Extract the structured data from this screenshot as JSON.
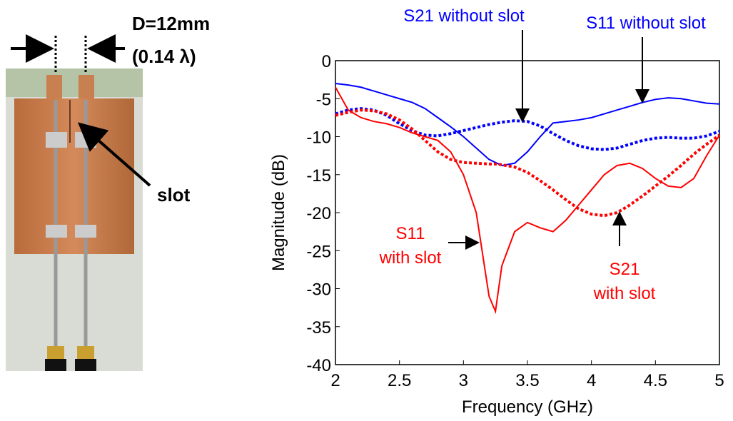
{
  "photo_labels": {
    "distance": "D=12mm",
    "wavelength": "(0.14 λ)",
    "slot": "slot"
  },
  "chart_data": {
    "type": "line",
    "x_label": "Frequency (GHz)",
    "y_label": "Magnitude (dB)",
    "x": [
      2.0,
      2.1,
      2.2,
      2.3,
      2.4,
      2.5,
      2.6,
      2.7,
      2.8,
      2.9,
      3.0,
      3.1,
      3.2,
      3.25,
      3.3,
      3.4,
      3.5,
      3.6,
      3.7,
      3.8,
      3.9,
      4.0,
      4.1,
      4.2,
      4.3,
      4.4,
      4.5,
      4.6,
      4.7,
      4.8,
      4.9,
      5.0
    ],
    "series": [
      {
        "name": "S11 without slot",
        "color": "#0000ff",
        "dash": "solid",
        "values": [
          -3,
          -3.2,
          -3.5,
          -4,
          -4.5,
          -5,
          -5.5,
          -6.3,
          -7.5,
          -8.7,
          -10,
          -11.5,
          -13,
          -13.4,
          -13.8,
          -13.5,
          -12,
          -10,
          -8.2,
          -8,
          -7.8,
          -7.5,
          -7,
          -6.5,
          -6,
          -5.5,
          -5.1,
          -4.9,
          -5,
          -5.3,
          -5.6,
          -5.7
        ]
      },
      {
        "name": "S21 without slot",
        "color": "#0000ff",
        "dash": "dotted",
        "values": [
          -7,
          -6.5,
          -6.3,
          -6.5,
          -7.2,
          -8.3,
          -9.2,
          -9.8,
          -9.9,
          -9.6,
          -9.2,
          -8.8,
          -8.4,
          -8.25,
          -8.1,
          -7.9,
          -8,
          -8.6,
          -9.6,
          -10.5,
          -11.2,
          -11.6,
          -11.7,
          -11.5,
          -11,
          -10.5,
          -10.2,
          -10.1,
          -10.2,
          -10.2,
          -9.9,
          -9.3
        ]
      },
      {
        "name": "S11 with slot",
        "color": "#ff0000",
        "dash": "solid",
        "values": [
          -3.5,
          -6.5,
          -7.5,
          -8,
          -8.3,
          -8.8,
          -9.5,
          -10,
          -10.5,
          -12,
          -15,
          -20,
          -31,
          -33,
          -27,
          -22.5,
          -21.3,
          -22,
          -22.5,
          -21,
          -19,
          -17,
          -15,
          -13.8,
          -13.5,
          -14.2,
          -15.5,
          -16.5,
          -16.7,
          -15.5,
          -12.5,
          -9.8
        ]
      },
      {
        "name": "S21 with slot",
        "color": "#ff0000",
        "dash": "dotted",
        "values": [
          -7.2,
          -6.8,
          -6.5,
          -6.6,
          -7,
          -7.8,
          -9,
          -10.5,
          -12,
          -13,
          -13.4,
          -13.5,
          -13.6,
          -13.6,
          -13.7,
          -14,
          -14.7,
          -15.8,
          -17,
          -18.3,
          -19.5,
          -20.2,
          -20.4,
          -20,
          -19,
          -17.8,
          -16.5,
          -15.2,
          -13.8,
          -12.3,
          -11,
          -9.8
        ]
      }
    ],
    "annotations": [
      {
        "text": [
          "S21 without slot"
        ],
        "color": "#0000ff"
      },
      {
        "text": [
          "S11 without slot"
        ],
        "color": "#0000ff"
      },
      {
        "text": [
          "S11",
          "with slot"
        ],
        "color": "#ff0000"
      },
      {
        "text": [
          "S21",
          "with slot"
        ],
        "color": "#ff0000"
      }
    ],
    "xlim": [
      2,
      5
    ],
    "ylim": [
      -40,
      0
    ],
    "xticks": [
      2,
      2.5,
      3,
      3.5,
      4,
      4.5,
      5
    ],
    "yticks": [
      0,
      -5,
      -10,
      -15,
      -20,
      -25,
      -30,
      -35,
      -40
    ],
    "grid": false
  }
}
